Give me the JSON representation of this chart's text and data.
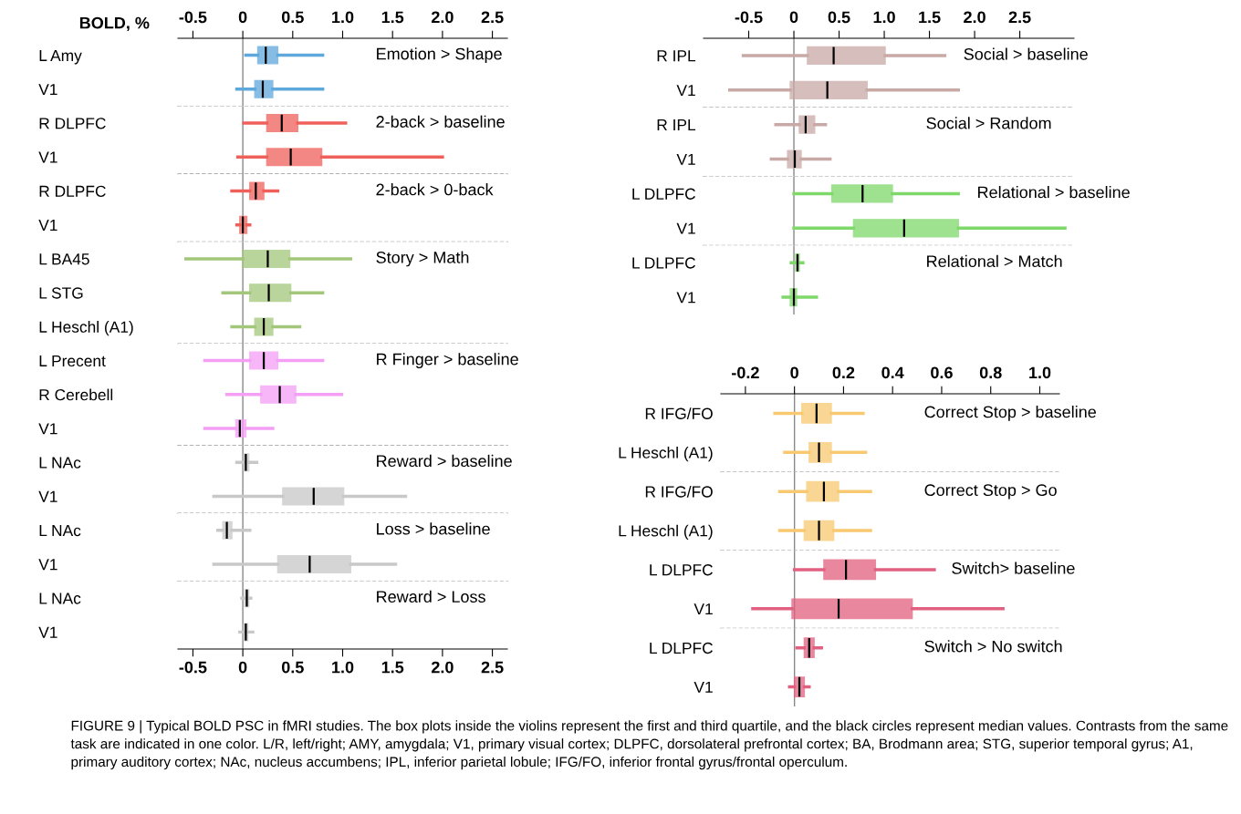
{
  "chart_data": [
    {
      "type": "box",
      "orientation": "horizontal",
      "title": "Emotion > Shape",
      "xlabel": "BOLD, %",
      "categories": [
        "L Amy",
        "V1"
      ],
      "xlim": [
        -0.65,
        2.65
      ],
      "xticks": [
        {
          "value": -0.5,
          "label": "-0.5"
        },
        {
          "value": 0,
          "label": "0"
        },
        {
          "value": 0.5,
          "label": "0.5"
        },
        {
          "value": 1,
          "label": "1.0"
        },
        {
          "value": 1.5,
          "label": "1.5"
        },
        {
          "value": 2,
          "label": "2.0"
        },
        {
          "value": 2.5,
          "label": "2.5"
        }
      ],
      "ref_lines": [
        {
          "axis": "x",
          "value": 0
        }
      ],
      "series": [
        {
          "color": "#5fa8dc",
          "boxes": [
            {
              "low": 0.03,
              "q1": 0.15,
              "median": 0.23,
              "q3": 0.35,
              "high": 0.8
            },
            {
              "low": -0.06,
              "q1": 0.12,
              "median": 0.2,
              "q3": 0.3,
              "high": 0.8
            }
          ]
        }
      ],
      "annotations": [
        "FIGURE 9 | Typical BOLD PSC in fMRI studies. The box plots inside the violins represent the first and third quartile, and the black circles represent median values. Contrasts from the same task are indicated in one color. L/R, left/right; AMY, amygdala; V1, primary visual cortex; DLPFC, dorsolateral prefrontal cortex; BA, Brodmann area; STG, superior temporal gyrus; A1, primary auditory cortex; NAc, nucleus accumbens; IPL, inferior parietal lobule; IFG/FO, inferior frontal gyrus/frontal operculum."
      ]
    },
    {
      "type": "box",
      "orientation": "horizontal",
      "title": "2-back > baseline",
      "categories": [
        "R DLPFC",
        "V1"
      ],
      "xlim": [
        -0.65,
        2.65
      ],
      "tick_labels": "y",
      "ref_lines": [
        {
          "axis": "x",
          "value": 0
        }
      ],
      "series": [
        {
          "color": "#f0605a",
          "boxes": [
            {
              "low": 0.01,
              "q1": 0.24,
              "median": 0.39,
              "q3": 0.55,
              "high": 1.03
            },
            {
              "low": -0.05,
              "q1": 0.24,
              "median": 0.48,
              "q3": 0.79,
              "high": 2.0
            }
          ]
        }
      ]
    },
    {
      "type": "box",
      "orientation": "horizontal",
      "title": "2-back > 0-back",
      "categories": [
        "R DLPFC",
        "V1"
      ],
      "xlim": [
        -0.65,
        2.65
      ],
      "tick_labels": "y",
      "ref_lines": [
        {
          "axis": "x",
          "value": 0
        }
      ],
      "series": [
        {
          "color": "#f0605a",
          "boxes": [
            {
              "low": -0.11,
              "q1": 0.07,
              "median": 0.13,
              "q3": 0.21,
              "high": 0.35
            },
            {
              "low": -0.06,
              "q1": -0.03,
              "median": 0.0,
              "q3": 0.04,
              "high": 0.07
            }
          ]
        }
      ]
    },
    {
      "type": "box",
      "orientation": "horizontal",
      "title": "Story > Math",
      "categories": [
        "L BA45",
        "L STG",
        "L Heschl (A1)"
      ],
      "xlim": [
        -0.65,
        2.65
      ],
      "tick_labels": "y",
      "ref_lines": [
        {
          "axis": "x",
          "value": 0
        }
      ],
      "series": [
        {
          "color": "#a3c77a",
          "boxes": [
            {
              "low": -0.57,
              "q1": 0.0,
              "median": 0.25,
              "q3": 0.47,
              "high": 1.08
            },
            {
              "low": -0.2,
              "q1": 0.07,
              "median": 0.26,
              "q3": 0.48,
              "high": 0.8
            },
            {
              "low": -0.11,
              "q1": 0.12,
              "median": 0.21,
              "q3": 0.3,
              "high": 0.57
            }
          ]
        }
      ]
    },
    {
      "type": "box",
      "orientation": "horizontal",
      "title": "R Finger > baseline",
      "categories": [
        "L Precent",
        "R Cerebell",
        "V1"
      ],
      "xlim": [
        -0.65,
        2.65
      ],
      "tick_labels": "y",
      "ref_lines": [
        {
          "axis": "x",
          "value": 0
        }
      ],
      "series": [
        {
          "color": "#f59ef5",
          "boxes": [
            {
              "low": -0.38,
              "q1": 0.07,
              "median": 0.21,
              "q3": 0.35,
              "high": 0.8
            },
            {
              "low": -0.16,
              "q1": 0.18,
              "median": 0.37,
              "q3": 0.53,
              "high": 0.99
            },
            {
              "low": -0.38,
              "q1": -0.07,
              "median": -0.03,
              "q3": 0.03,
              "high": 0.3
            }
          ]
        }
      ]
    },
    {
      "type": "box",
      "orientation": "horizontal",
      "title": "Reward > baseline",
      "categories": [
        "L NAc",
        "V1"
      ],
      "xlim": [
        -0.65,
        2.65
      ],
      "tick_labels": "y",
      "ref_lines": [
        {
          "axis": "x",
          "value": 0
        }
      ],
      "series": [
        {
          "color": "#c8c8c8",
          "boxes": [
            {
              "low": -0.06,
              "q1": 0.01,
              "median": 0.03,
              "q3": 0.06,
              "high": 0.14
            },
            {
              "low": -0.29,
              "q1": 0.4,
              "median": 0.71,
              "q3": 1.01,
              "high": 1.63
            }
          ]
        }
      ]
    },
    {
      "type": "box",
      "orientation": "horizontal",
      "title": "Loss > baseline",
      "categories": [
        "L NAc",
        "V1"
      ],
      "xlim": [
        -0.65,
        2.65
      ],
      "tick_labels": "y",
      "ref_lines": [
        {
          "axis": "x",
          "value": 0
        }
      ],
      "series": [
        {
          "color": "#c8c8c8",
          "boxes": [
            {
              "low": -0.25,
              "q1": -0.2,
              "median": -0.16,
              "q3": -0.11,
              "high": 0.07
            },
            {
              "low": -0.29,
              "q1": 0.35,
              "median": 0.67,
              "q3": 1.08,
              "high": 1.53
            }
          ]
        }
      ]
    },
    {
      "type": "box",
      "orientation": "horizontal",
      "title": "Reward > Loss",
      "categories": [
        "L NAc",
        "V1"
      ],
      "xlim": [
        -0.65,
        2.65
      ],
      "xticks": [
        {
          "value": -0.5,
          "label": "-0.5"
        },
        {
          "value": 0,
          "label": "0"
        },
        {
          "value": 0.5,
          "label": "0.5"
        },
        {
          "value": 1,
          "label": "1.0"
        },
        {
          "value": 1.5,
          "label": "1.5"
        },
        {
          "value": 2,
          "label": "2.0"
        },
        {
          "value": 2.5,
          "label": "2.5"
        }
      ],
      "ref_lines": [
        {
          "axis": "x",
          "value": 0
        }
      ],
      "series": [
        {
          "color": "#c8c8c8",
          "boxes": [
            {
              "low": -0.01,
              "q1": 0.02,
              "median": 0.04,
              "q3": 0.06,
              "high": 0.08
            },
            {
              "low": -0.03,
              "q1": 0.01,
              "median": 0.03,
              "q3": 0.05,
              "high": 0.1
            }
          ]
        }
      ]
    },
    {
      "type": "box",
      "orientation": "horizontal",
      "title": "Social > baseline",
      "categories": [
        "R IPL",
        "V1"
      ],
      "xlim": [
        -1.0,
        3.1
      ],
      "xticks": [
        {
          "value": -0.5,
          "label": "-0.5"
        },
        {
          "value": 0,
          "label": "0"
        },
        {
          "value": 0.5,
          "label": "0.5"
        },
        {
          "value": 1,
          "label": "1.0"
        },
        {
          "value": 1.5,
          "label": "1.5"
        },
        {
          "value": 2,
          "label": "2.0"
        },
        {
          "value": 2.5,
          "label": "2.5"
        }
      ],
      "ref_lines": [
        {
          "axis": "x",
          "value": 0
        }
      ],
      "series": [
        {
          "color": "#c9a9a6",
          "boxes": [
            {
              "low": -0.56,
              "q1": 0.15,
              "median": 0.44,
              "q3": 1.01,
              "high": 1.67
            },
            {
              "low": -0.71,
              "q1": -0.04,
              "median": 0.37,
              "q3": 0.81,
              "high": 1.82
            }
          ]
        }
      ]
    },
    {
      "type": "box",
      "orientation": "horizontal",
      "title": "Social > Random",
      "categories": [
        "R IPL",
        "V1"
      ],
      "xlim": [
        -1.0,
        3.1
      ],
      "tick_labels": "y",
      "ref_lines": [
        {
          "axis": "x",
          "value": 0
        }
      ],
      "series": [
        {
          "color": "#c9a9a6",
          "boxes": [
            {
              "low": -0.2,
              "q1": 0.06,
              "median": 0.13,
              "q3": 0.23,
              "high": 0.35
            },
            {
              "low": -0.25,
              "q1": -0.07,
              "median": 0.01,
              "q3": 0.08,
              "high": 0.4
            }
          ]
        }
      ]
    },
    {
      "type": "box",
      "orientation": "horizontal",
      "title": "Relational > baseline",
      "categories": [
        "L DLPFC",
        "V1"
      ],
      "xlim": [
        -1.0,
        3.1
      ],
      "tick_labels": "y",
      "ref_lines": [
        {
          "axis": "x",
          "value": 0
        }
      ],
      "series": [
        {
          "color": "#7ed86a",
          "boxes": [
            {
              "low": 0.0,
              "q1": 0.42,
              "median": 0.76,
              "q3": 1.09,
              "high": 1.82
            },
            {
              "low": 0.0,
              "q1": 0.66,
              "median": 1.22,
              "q3": 1.82,
              "high": 3.0
            }
          ]
        }
      ]
    },
    {
      "type": "box",
      "orientation": "horizontal",
      "title": "Relational > Match",
      "categories": [
        "L DLPFC",
        "V1"
      ],
      "xlim": [
        -1.0,
        3.1
      ],
      "tick_labels": "y",
      "ref_lines": [
        {
          "axis": "x",
          "value": 0
        }
      ],
      "series": [
        {
          "color": "#7ed86a",
          "boxes": [
            {
              "low": -0.03,
              "q1": 0.02,
              "median": 0.04,
              "q3": 0.06,
              "high": 0.1
            },
            {
              "low": -0.12,
              "q1": -0.04,
              "median": 0.0,
              "q3": 0.03,
              "high": 0.25
            }
          ]
        }
      ]
    },
    {
      "type": "box",
      "orientation": "horizontal",
      "title": "Correct Stop > baseline",
      "categories": [
        "R IFG/FO",
        "L Heschl (A1)"
      ],
      "xlim": [
        -0.3,
        1.08
      ],
      "xticks": [
        {
          "value": -0.2,
          "label": "-0.2"
        },
        {
          "value": 0,
          "label": "0"
        },
        {
          "value": 0.2,
          "label": "0.2"
        },
        {
          "value": 0.4,
          "label": "0.4"
        },
        {
          "value": 0.6,
          "label": "0.6"
        },
        {
          "value": 0.8,
          "label": "0.8"
        },
        {
          "value": 1,
          "label": "1.0"
        }
      ],
      "ref_lines": [
        {
          "axis": "x",
          "value": 0
        }
      ],
      "series": [
        {
          "color": "#f8c970",
          "boxes": [
            {
              "low": -0.08,
              "q1": 0.03,
              "median": 0.09,
              "q3": 0.15,
              "high": 0.28
            },
            {
              "low": -0.04,
              "q1": 0.06,
              "median": 0.1,
              "q3": 0.15,
              "high": 0.29
            }
          ]
        }
      ]
    },
    {
      "type": "box",
      "orientation": "horizontal",
      "title": "Correct Stop > Go",
      "categories": [
        "R IFG/FO",
        "L Heschl (A1)"
      ],
      "xlim": [
        -0.3,
        1.08
      ],
      "tick_labels": "y",
      "ref_lines": [
        {
          "axis": "x",
          "value": 0
        }
      ],
      "series": [
        {
          "color": "#f8c970",
          "boxes": [
            {
              "low": -0.06,
              "q1": 0.05,
              "median": 0.12,
              "q3": 0.18,
              "high": 0.31
            },
            {
              "low": -0.06,
              "q1": 0.04,
              "median": 0.1,
              "q3": 0.16,
              "high": 0.31
            }
          ]
        }
      ]
    },
    {
      "type": "box",
      "orientation": "horizontal",
      "title": "Switch> baseline",
      "categories": [
        "L DLPFC",
        "V1"
      ],
      "xlim": [
        -0.3,
        1.08
      ],
      "tick_labels": "y",
      "ref_lines": [
        {
          "axis": "x",
          "value": 0
        }
      ],
      "series": [
        {
          "color": "#e2607f",
          "boxes": [
            {
              "low": 0.0,
              "q1": 0.12,
              "median": 0.21,
              "q3": 0.33,
              "high": 0.57
            },
            {
              "low": -0.17,
              "q1": -0.01,
              "median": 0.18,
              "q3": 0.48,
              "high": 0.85
            }
          ]
        }
      ]
    },
    {
      "type": "box",
      "orientation": "horizontal",
      "title": "Switch > No switch",
      "categories": [
        "L DLPFC",
        "V1"
      ],
      "xlim": [
        -0.3,
        1.08
      ],
      "tick_labels": "y",
      "ref_lines": [
        {
          "axis": "x",
          "value": 0
        }
      ],
      "series": [
        {
          "color": "#e2607f",
          "boxes": [
            {
              "low": 0.01,
              "q1": 0.04,
              "median": 0.06,
              "q3": 0.08,
              "high": 0.11
            },
            {
              "low": -0.02,
              "q1": 0.0,
              "median": 0.02,
              "q3": 0.04,
              "high": 0.06
            }
          ]
        }
      ]
    }
  ]
}
